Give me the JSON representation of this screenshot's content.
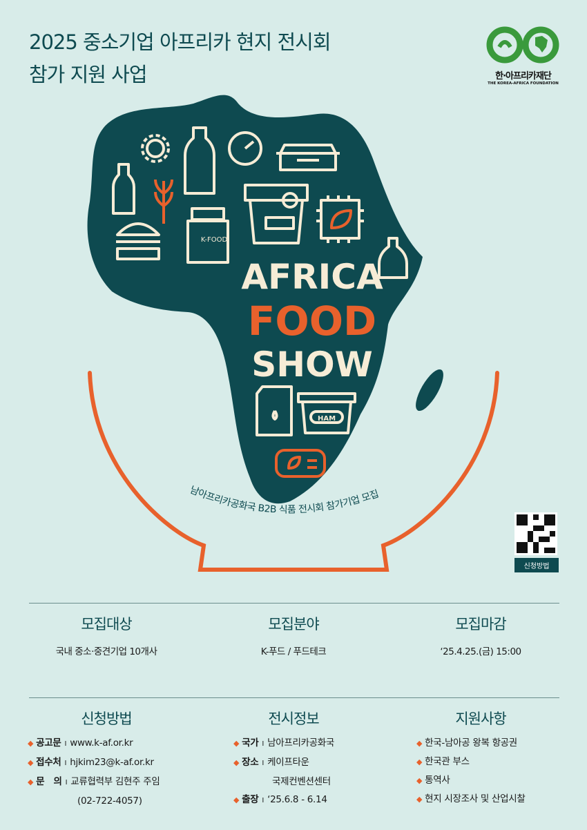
{
  "header": {
    "title_line1": "2025 중소기업 아프리카 현지 전시회",
    "title_line2": "참가 지원 사업"
  },
  "logo": {
    "name_ko": "한·아프리카재단",
    "name_en": "THE KOREA-AFRICA FOUNDATION"
  },
  "hero": {
    "line1": "AFRICA",
    "line2": "FOOD",
    "line3": "SHOW",
    "jar_label": "K-FOOD",
    "tub_label": "HAM",
    "arc_caption": "남아프리카공화국 B2B 식품 전시회 참가기업 모집"
  },
  "qr": {
    "label": "신청방법"
  },
  "summary": [
    {
      "heading": "모집대상",
      "value": "국내 중소·중견기업 10개사"
    },
    {
      "heading": "모집분야",
      "value": "K-푸드 / 푸드테크"
    },
    {
      "heading": "모집마감",
      "value": "‘25.4.25.(금) 15:00"
    }
  ],
  "apply": {
    "heading": "신청방법",
    "items": [
      {
        "key": "공고문",
        "value": "www.k-af.or.kr"
      },
      {
        "key": "접수처",
        "value": "hjkim23@k-af.or.kr"
      },
      {
        "key": "문　의",
        "value": "교류협력부 김현주 주임",
        "cont": "(02-722-4057)"
      }
    ]
  },
  "exhibit": {
    "heading": "전시정보",
    "items": [
      {
        "key": "국가",
        "value": "남아프리카공화국"
      },
      {
        "key": "장소",
        "value": "케이프타운",
        "cont": "국제컨벤션센터"
      },
      {
        "key": "출장",
        "value": "‘25.6.8 - 6.14"
      }
    ]
  },
  "support": {
    "heading": "지원사항",
    "items": [
      "한국-남아공 왕복 항공권",
      "한국관 부스",
      "통역사",
      "현지 시장조사 및 산업시찰"
    ]
  },
  "colors": {
    "background": "#d8ece9",
    "teal": "#0e4a50",
    "orange": "#e8612c",
    "cream": "#f6ecd6",
    "logo_green": "#3a9a3c"
  }
}
